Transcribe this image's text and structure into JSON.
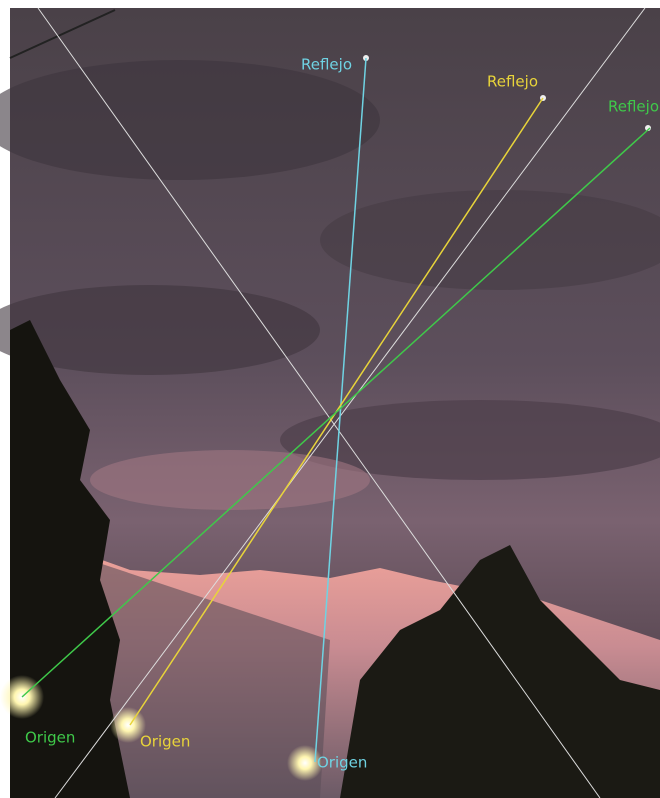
{
  "annotations": [
    {
      "color": "#6fd3e3",
      "reflection": "Reflejo",
      "origin": "Origen"
    },
    {
      "color": "#e8d43a",
      "reflection": "Reflejo",
      "origin": "Origen"
    },
    {
      "color": "#3fc94a",
      "reflection": "Reflejo",
      "origin": "Origen"
    }
  ]
}
